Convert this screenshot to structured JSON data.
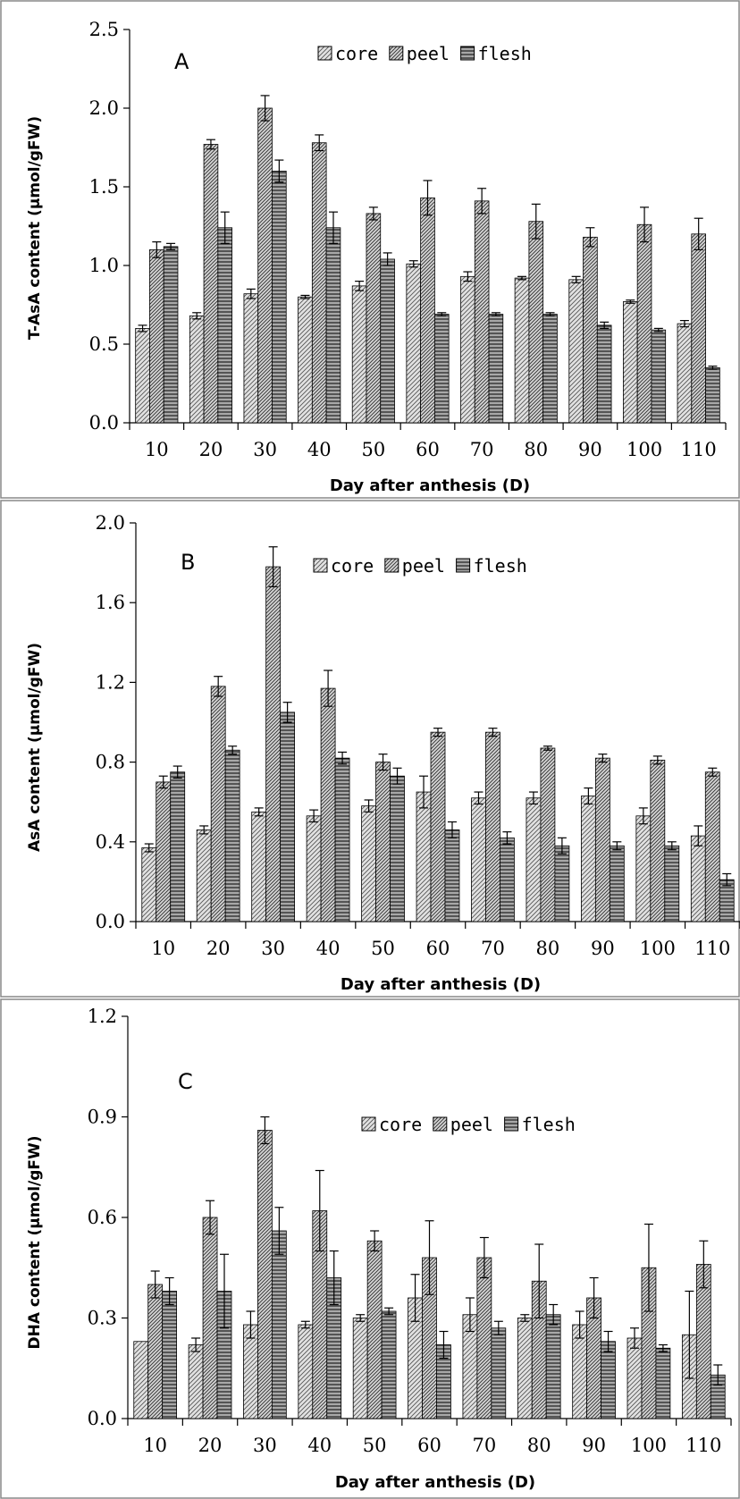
{
  "legend": [
    {
      "key": "core",
      "label": "core",
      "pattern": "core-pattern"
    },
    {
      "key": "peel",
      "label": "peel",
      "pattern": "peel-pattern"
    },
    {
      "key": "flesh",
      "label": "flesh",
      "pattern": "flesh-pattern"
    }
  ],
  "chart_data": [
    {
      "type": "bar",
      "panel": "A",
      "title": "",
      "xlabel": "Day after anthesis (D)",
      "ylabel": "T-AsA content (μmol/gFW)",
      "ylim": [
        0,
        2.5
      ],
      "yticks": [
        "0.0",
        "0.5",
        "1.0",
        "1.5",
        "2.0",
        "2.5"
      ],
      "categories": [
        "10",
        "20",
        "30",
        "40",
        "50",
        "60",
        "70",
        "80",
        "90",
        "100",
        "110"
      ],
      "grid": false,
      "legend_position": "top-center",
      "series": [
        {
          "name": "core",
          "values": [
            0.6,
            0.68,
            0.82,
            0.8,
            0.87,
            1.01,
            0.93,
            0.92,
            0.91,
            0.77,
            0.63
          ],
          "errors": [
            0.02,
            0.02,
            0.03,
            0.01,
            0.03,
            0.02,
            0.03,
            0.01,
            0.02,
            0.01,
            0.02
          ]
        },
        {
          "name": "peel",
          "values": [
            1.1,
            1.77,
            2.0,
            1.78,
            1.33,
            1.43,
            1.41,
            1.28,
            1.18,
            1.26,
            1.2
          ],
          "errors": [
            0.05,
            0.03,
            0.08,
            0.05,
            0.04,
            0.11,
            0.08,
            0.11,
            0.06,
            0.11,
            0.1
          ]
        },
        {
          "name": "flesh",
          "values": [
            1.12,
            1.24,
            1.6,
            1.24,
            1.04,
            0.69,
            0.69,
            0.69,
            0.62,
            0.59,
            0.35
          ],
          "errors": [
            0.02,
            0.1,
            0.07,
            0.1,
            0.04,
            0.01,
            0.01,
            0.01,
            0.02,
            0.01,
            0.01
          ]
        }
      ]
    },
    {
      "type": "bar",
      "panel": "B",
      "title": "",
      "xlabel": "Day after anthesis (D)",
      "ylabel": "AsA content (μmol/gFW)",
      "ylim": [
        0,
        2.0
      ],
      "yticks": [
        "0.0",
        "0.4",
        "0.8",
        "1.2",
        "1.6",
        "2.0"
      ],
      "categories": [
        "10",
        "20",
        "30",
        "40",
        "50",
        "60",
        "70",
        "80",
        "90",
        "100",
        "110"
      ],
      "grid": false,
      "legend_position": "top-center",
      "series": [
        {
          "name": "core",
          "values": [
            0.37,
            0.46,
            0.55,
            0.53,
            0.58,
            0.65,
            0.62,
            0.62,
            0.63,
            0.53,
            0.43
          ],
          "errors": [
            0.02,
            0.02,
            0.02,
            0.03,
            0.03,
            0.08,
            0.03,
            0.03,
            0.04,
            0.04,
            0.05
          ]
        },
        {
          "name": "peel",
          "values": [
            0.7,
            1.18,
            1.78,
            1.17,
            0.8,
            0.95,
            0.95,
            0.87,
            0.82,
            0.81,
            0.75
          ],
          "errors": [
            0.03,
            0.05,
            0.1,
            0.09,
            0.04,
            0.02,
            0.02,
            0.01,
            0.02,
            0.02,
            0.02
          ]
        },
        {
          "name": "flesh",
          "values": [
            0.75,
            0.86,
            1.05,
            0.82,
            0.73,
            0.46,
            0.42,
            0.38,
            0.38,
            0.38,
            0.21
          ],
          "errors": [
            0.03,
            0.02,
            0.05,
            0.03,
            0.04,
            0.04,
            0.03,
            0.04,
            0.02,
            0.02,
            0.03
          ]
        }
      ]
    },
    {
      "type": "bar",
      "panel": "C",
      "title": "",
      "xlabel": "Day after anthesis (D)",
      "ylabel": "DHA content (μmol/gFW)",
      "ylim": [
        0,
        1.2
      ],
      "yticks": [
        "0.0",
        "0.3",
        "0.6",
        "0.9",
        "1.2"
      ],
      "categories": [
        "10",
        "20",
        "30",
        "40",
        "50",
        "60",
        "70",
        "80",
        "90",
        "100",
        "110"
      ],
      "grid": false,
      "legend_position": "upper-center",
      "series": [
        {
          "name": "core",
          "values": [
            0.23,
            0.22,
            0.28,
            0.28,
            0.3,
            0.36,
            0.31,
            0.3,
            0.28,
            0.24,
            0.25
          ],
          "errors": [
            0.0,
            0.02,
            0.04,
            0.01,
            0.01,
            0.07,
            0.05,
            0.01,
            0.04,
            0.03,
            0.13
          ]
        },
        {
          "name": "peel",
          "values": [
            0.4,
            0.6,
            0.86,
            0.62,
            0.53,
            0.48,
            0.48,
            0.41,
            0.36,
            0.45,
            0.46
          ],
          "errors": [
            0.04,
            0.05,
            0.04,
            0.12,
            0.03,
            0.11,
            0.06,
            0.11,
            0.06,
            0.13,
            0.07
          ]
        },
        {
          "name": "flesh",
          "values": [
            0.38,
            0.38,
            0.56,
            0.42,
            0.32,
            0.22,
            0.27,
            0.31,
            0.23,
            0.21,
            0.13
          ],
          "errors": [
            0.04,
            0.11,
            0.07,
            0.08,
            0.01,
            0.04,
            0.02,
            0.03,
            0.03,
            0.01,
            0.03
          ]
        }
      ]
    }
  ]
}
